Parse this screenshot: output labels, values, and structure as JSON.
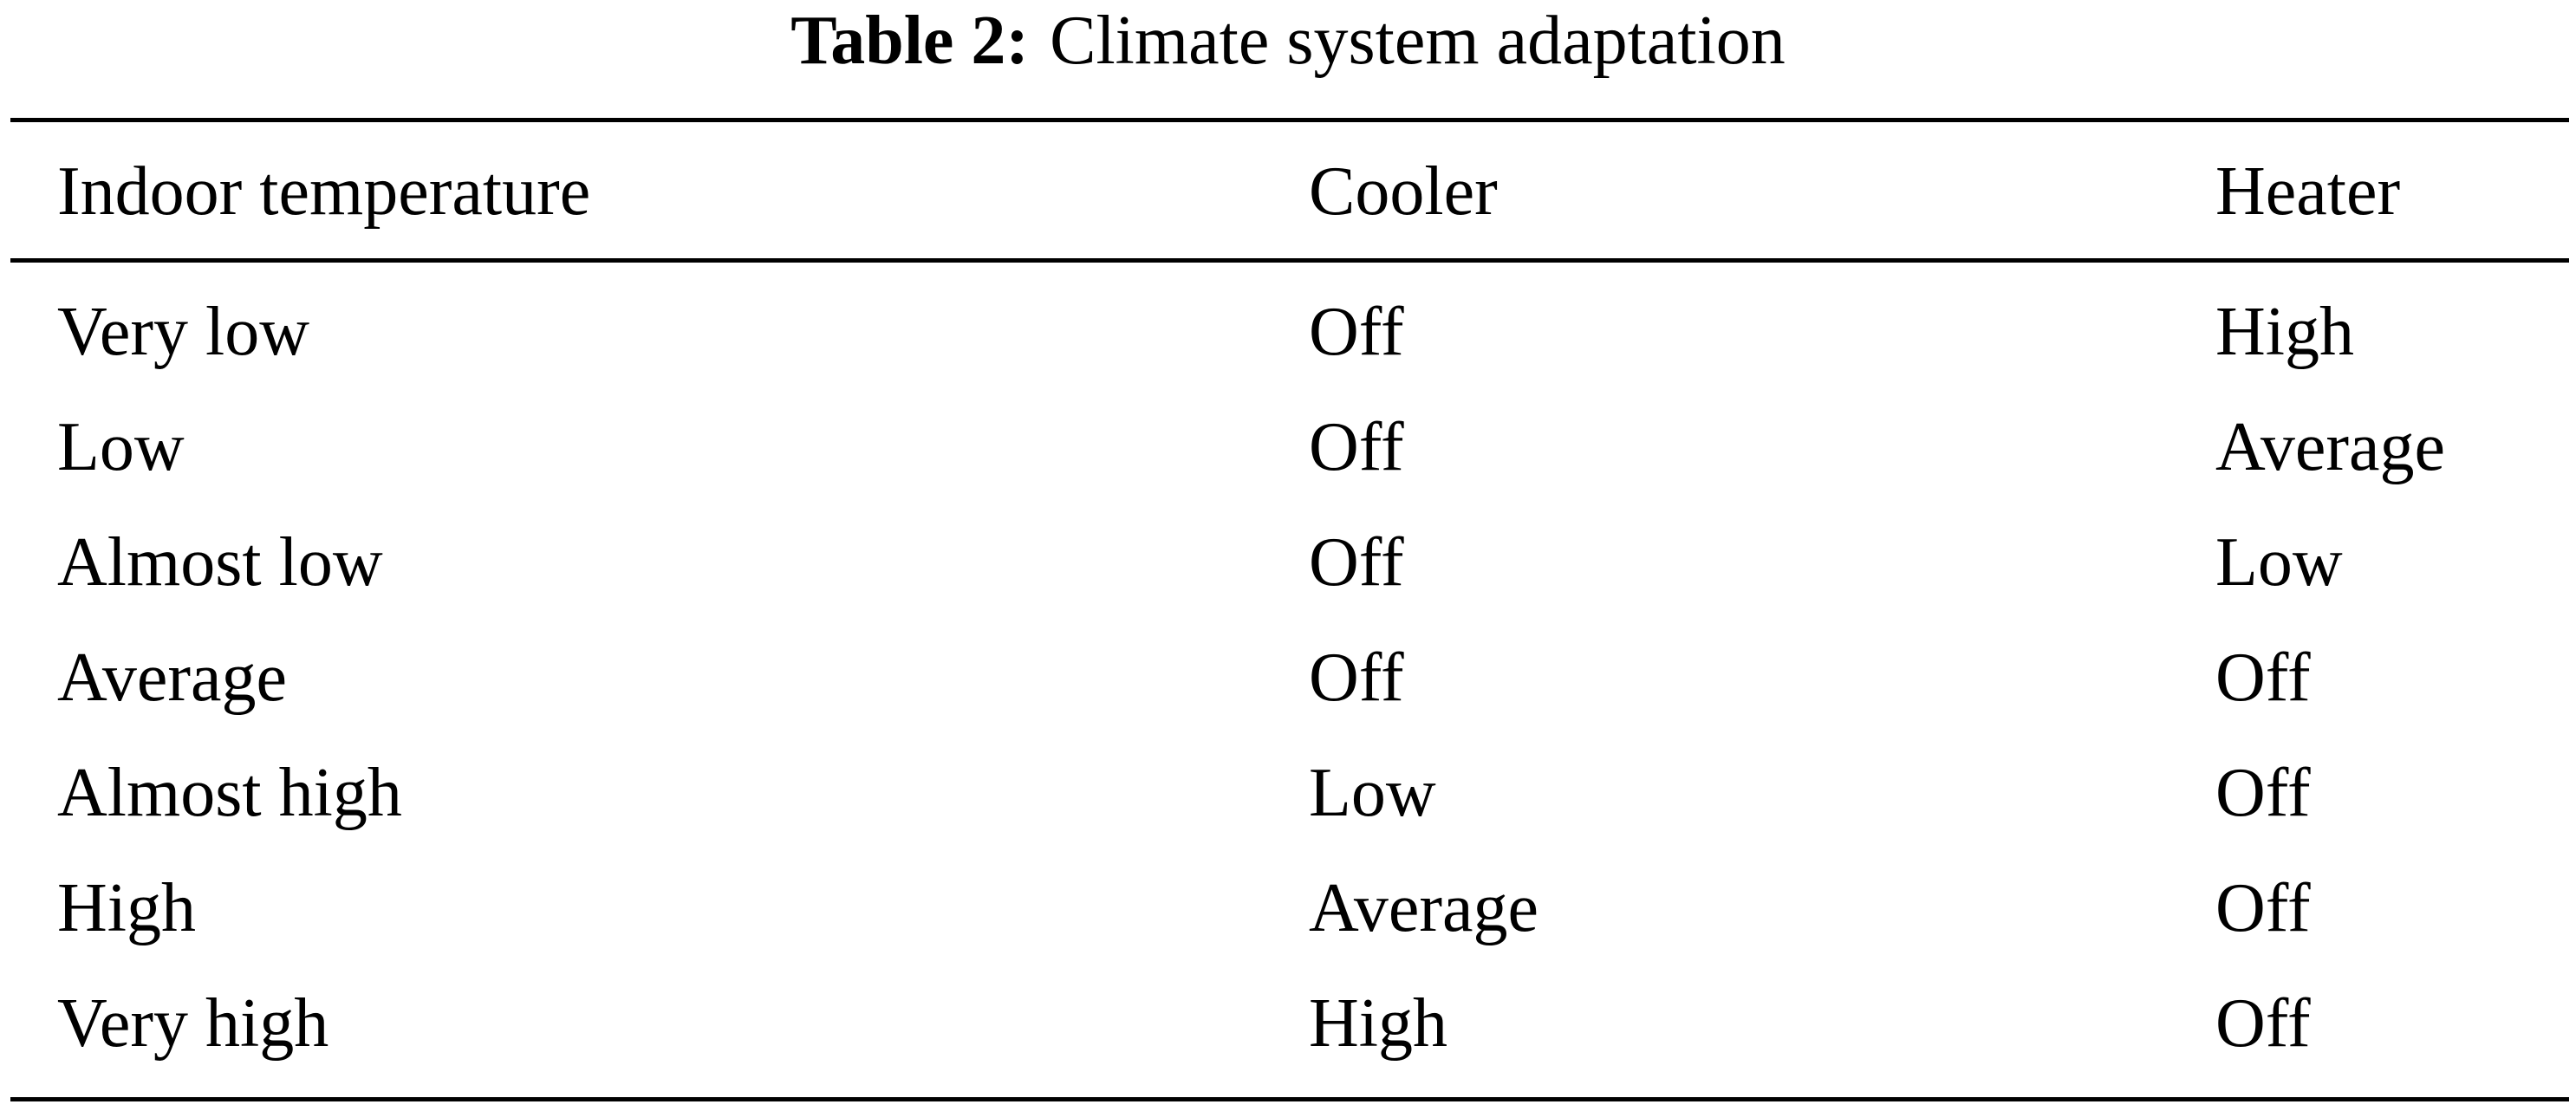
{
  "table": {
    "label": "Table 2:",
    "title": "Climate system adaptation",
    "columns": [
      "Indoor temperature",
      "Cooler",
      "Heater"
    ],
    "rows": [
      [
        "Very low",
        "Off",
        "High"
      ],
      [
        "Low",
        "Off",
        "Average"
      ],
      [
        "Almost low",
        "Off",
        "Low"
      ],
      [
        "Average",
        "Off",
        "Off"
      ],
      [
        "Almost high",
        "Low",
        "Off"
      ],
      [
        "High",
        "Average",
        "Off"
      ],
      [
        "Very high",
        "High",
        "Off"
      ]
    ]
  }
}
